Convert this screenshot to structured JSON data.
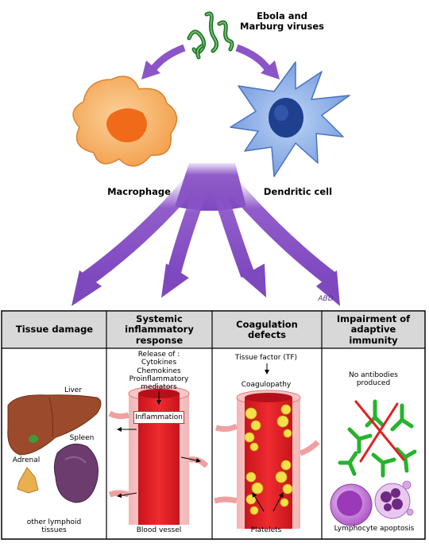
{
  "virus_label": "Ebola and\nMarburg viruses",
  "macrophage_label": "Macrophage",
  "dendritic_label": "Dendritic cell",
  "signature": "ABD",
  "columns": [
    {
      "title": "Tissue damage"
    },
    {
      "title": "Systemic\ninflammatory\nresponse"
    },
    {
      "title": "Coagulation\ndefects"
    },
    {
      "title": "Impairment of\nadaptive\nimmunity"
    }
  ],
  "tissue": {
    "liver": "Liver",
    "spleen": "Spleen",
    "adrenal": "Adrenal",
    "lymphoid": "other lymphoid\ntissues"
  },
  "inflammatory": {
    "release": "Release of :\nCytokines\nChemokines\nProinflammatory\nmediators",
    "inflammation": "Inflammation",
    "vessel": "Blood vessel"
  },
  "coagulation": {
    "tissue_factor": "Tissue factor (TF)",
    "coagulopathy": "Coagulopathy",
    "platelets": "Platelets"
  },
  "immunity": {
    "no_antibodies": "No antibodies\nproduced",
    "apoptosis": "Lymphocyte apoptosis"
  },
  "colors": {
    "arrow": "#8b55c8",
    "header_bg": "#d8d8d8",
    "macrophage": "#f7b267",
    "dendritic": "#8fb3e8",
    "vessel": "#e0262b",
    "platelet": "#f3e04a",
    "antibody_green": "#27b32b",
    "antibody_red": "#e02020",
    "liver": "#9c4a2c",
    "spleen": "#6c3c6e",
    "adrenal": "#e8b050",
    "lymphocyte": "#b25bc8"
  }
}
